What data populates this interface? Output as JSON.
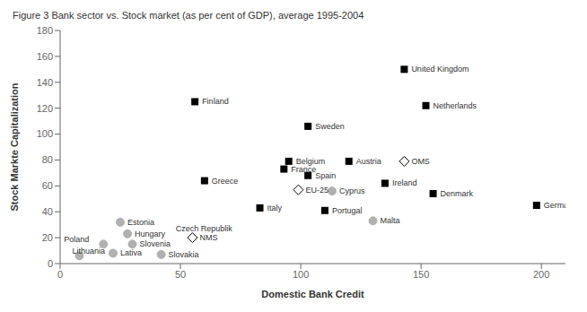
{
  "chart_data": {
    "type": "scatter",
    "title": "Figure 3 Bank sector vs. Stock market (as per cent of GDP), average 1995-2004",
    "xlabel": "Domestic Bank Credit",
    "ylabel": "Stock Markte Capitalization",
    "xlim": [
      0,
      210
    ],
    "ylim": [
      0,
      180
    ],
    "xticks": [
      0,
      50,
      100,
      150,
      200
    ],
    "yticks": [
      0,
      20,
      40,
      60,
      80,
      100,
      120,
      140,
      160,
      180
    ],
    "grid": false,
    "series": [
      {
        "marker": "square",
        "color": "black",
        "x": [
          143,
          152,
          103,
          95,
          120,
          93,
          103,
          135,
          155,
          198,
          56,
          60,
          83,
          110
        ],
        "values": [
          150,
          122,
          106,
          79,
          79,
          73,
          68,
          62,
          54,
          45,
          125,
          64,
          43,
          41
        ],
        "labels": [
          "United Kingdom",
          "Netherlands",
          "Sweden",
          "Belgium",
          "Austria",
          "France",
          "Spain",
          "Ireland",
          "Denmark",
          "Germany",
          "Finland",
          "Greece",
          "Italy",
          "Portugal"
        ]
      },
      {
        "marker": "circle",
        "color": "#b0b0b0",
        "x": [
          25,
          28,
          18,
          30,
          8,
          22,
          42,
          113,
          130
        ],
        "values": [
          32,
          23,
          15,
          15,
          6,
          8,
          7,
          56,
          33
        ],
        "labels": [
          "Estonia",
          "Hungary",
          "Poland",
          "Slovenia",
          "Lithuania",
          "Lativa",
          "Slovakia",
          "Cyprus",
          "Malta"
        ]
      },
      {
        "marker": "open_diamond",
        "color": "black",
        "x": [
          99,
          143,
          55
        ],
        "values": [
          57,
          79,
          20
        ],
        "labels": [
          "EU-25",
          "OMS",
          "NMS"
        ]
      }
    ],
    "annotations": [
      {
        "text": "Czech Republik",
        "x": 48,
        "y": 27
      }
    ]
  }
}
